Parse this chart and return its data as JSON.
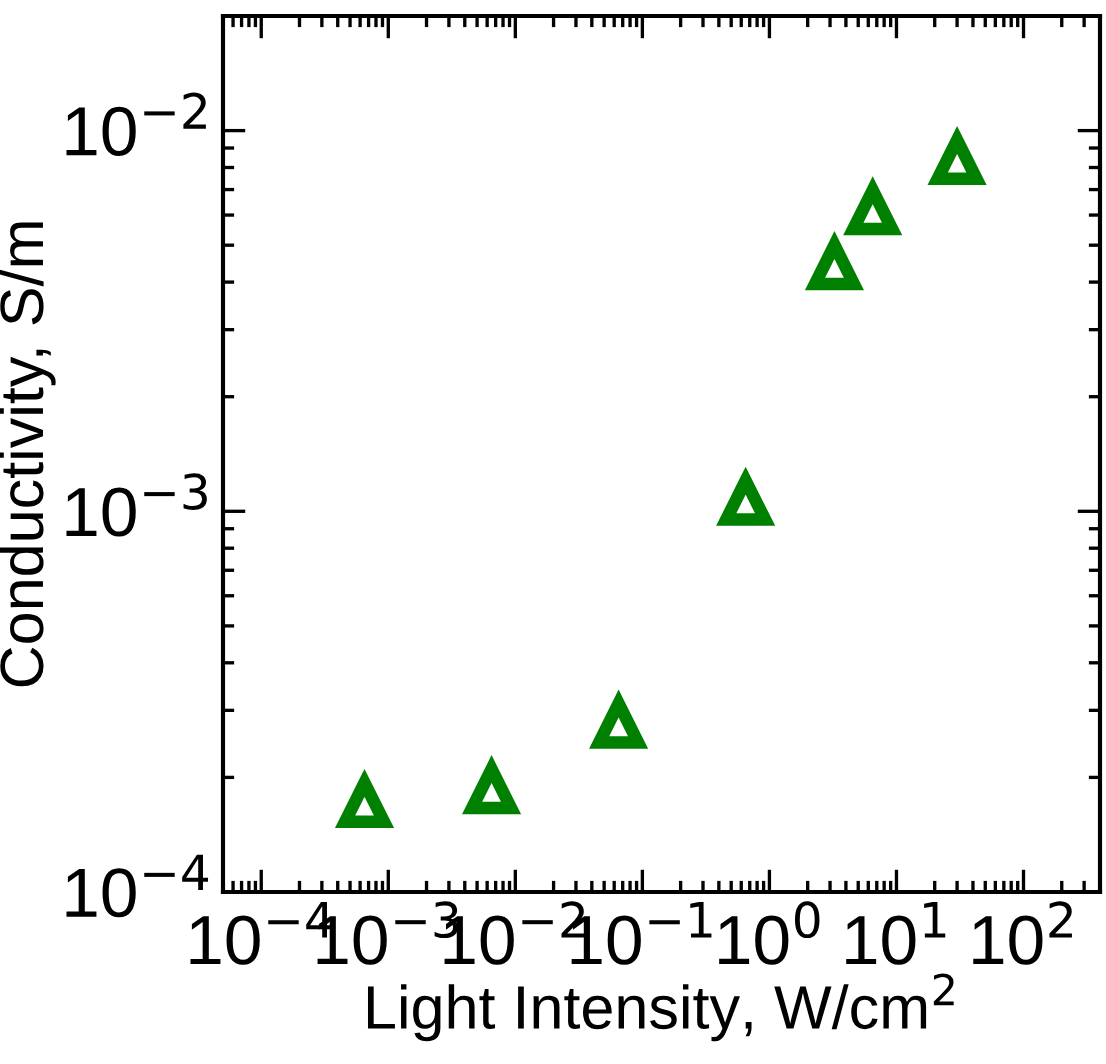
{
  "chart_data": {
    "type": "scatter",
    "xlabel": "Light Intensity, W/cm$^{2}$",
    "ylabel": "Conductivity, S/m",
    "log": "xy",
    "marker": "triangle",
    "grid": false,
    "x": [
      0.00065,
      0.0065,
      0.065,
      0.65,
      3.25,
      6.5,
      30
    ],
    "series": [
      {
        "color": "#008000",
        "values": [
          0.000172,
          0.000187,
          0.000278,
          0.00107,
          0.00445,
          0.0062,
          0.0084
        ]
      }
    ],
    "xlim": [
      5e-05,
      400
    ],
    "xticks": [
      {
        "value": 0.0001,
        "label": "10$^{−4}$"
      },
      {
        "value": 0.001,
        "label": "10$^{−3}$"
      },
      {
        "value": 0.01,
        "label": "10$^{−2}$"
      },
      {
        "value": 0.1,
        "label": "10$^{−1}$"
      },
      {
        "value": 1,
        "label": "10$^{0}$"
      },
      {
        "value": 10,
        "label": "10$^{1}$"
      },
      {
        "value": 100,
        "label": "10$^{2}$"
      }
    ],
    "ylim": [
      0.0001,
      0.02
    ],
    "yticks": [
      {
        "value": 0.0001,
        "label": "10$^{−4}$"
      },
      {
        "value": 0.001,
        "label": "10$^{−3}$"
      },
      {
        "value": 0.01,
        "label": "10$^{−2}$"
      }
    ]
  }
}
